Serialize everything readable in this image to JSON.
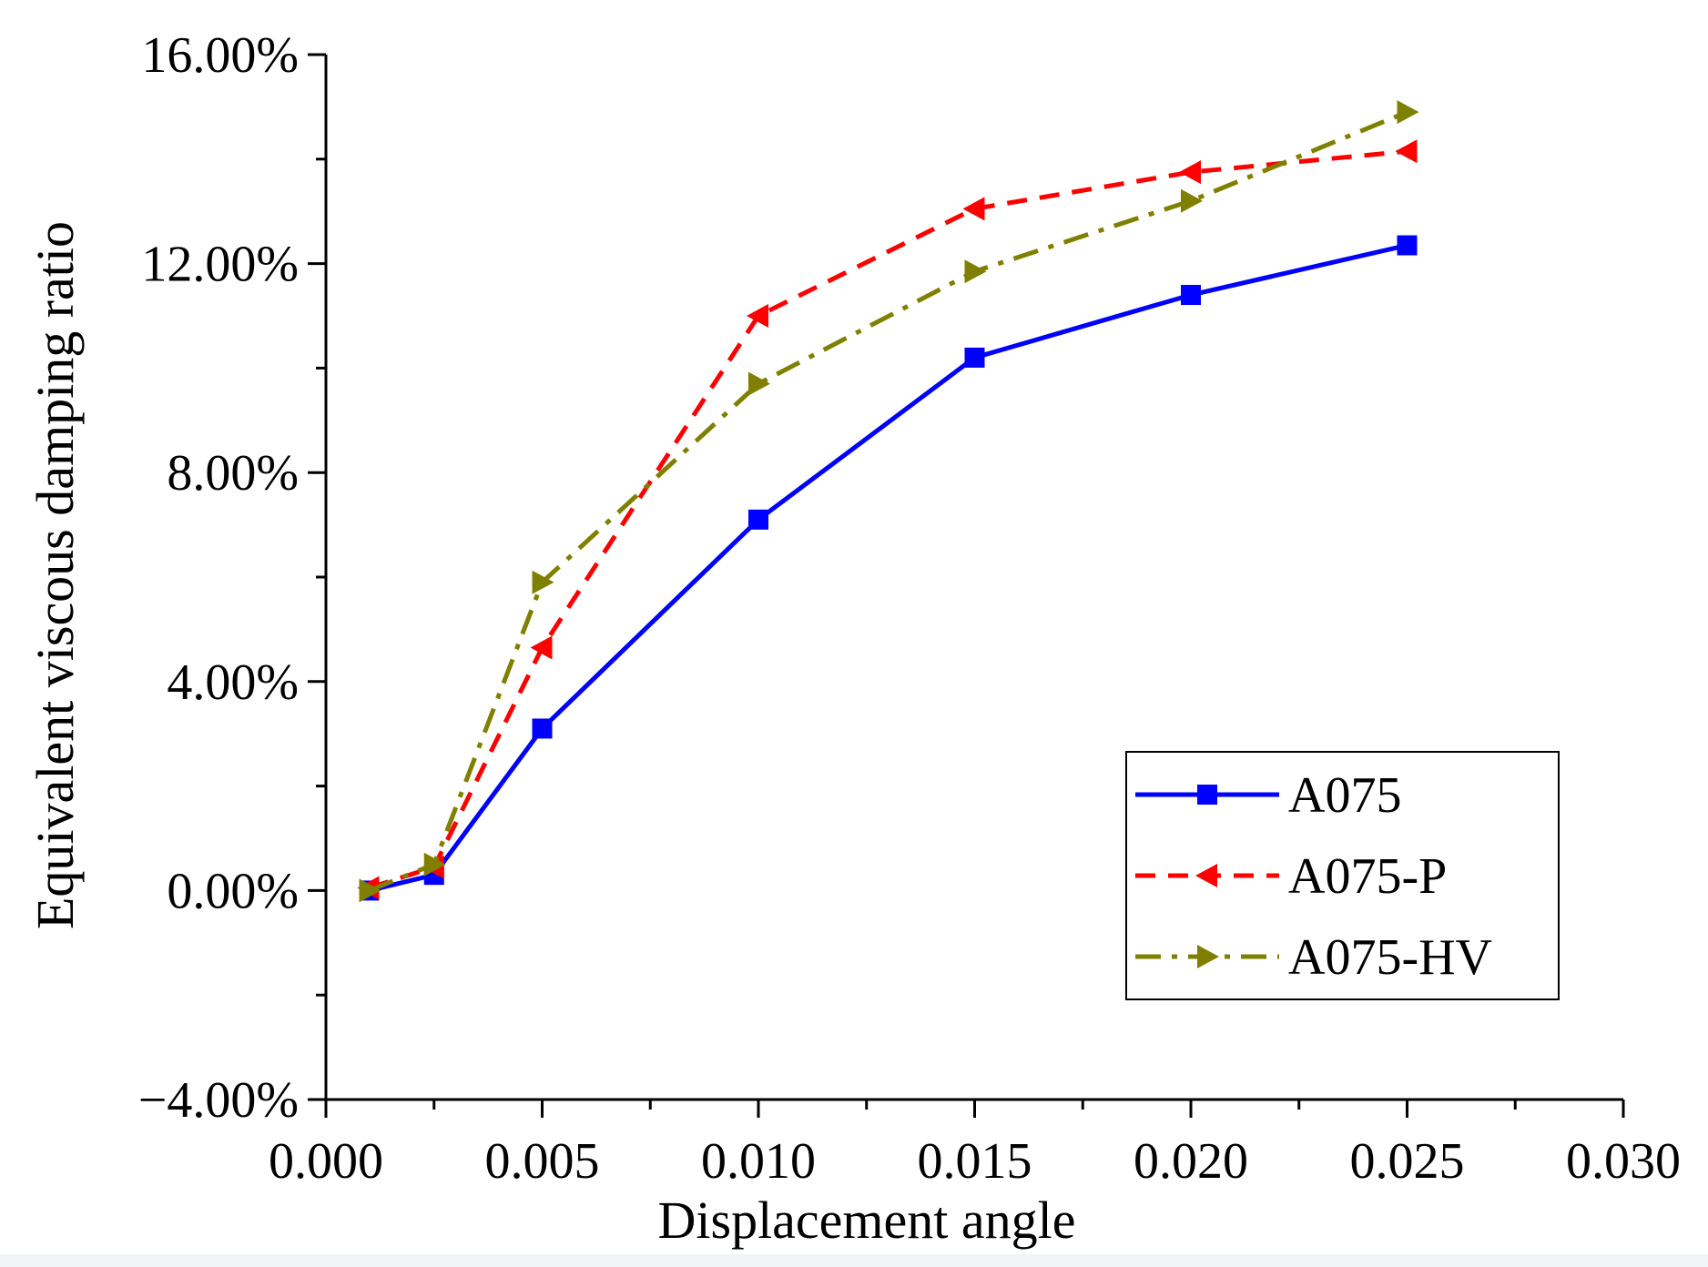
{
  "chart_data": {
    "type": "line",
    "title": "",
    "xlabel": "Displacement angle",
    "ylabel": "Equivalent viscous damping ratio",
    "xlim": [
      0.0,
      0.03
    ],
    "ylim": [
      -4.0,
      16.0
    ],
    "x_ticks": [
      0.0,
      0.005,
      0.01,
      0.015,
      0.02,
      0.025,
      0.03
    ],
    "x_tick_labels": [
      "0.000",
      "0.005",
      "0.010",
      "0.015",
      "0.020",
      "0.025",
      "0.030"
    ],
    "x_minor_step": 0.0025,
    "y_ticks": [
      -4,
      0,
      4,
      8,
      12,
      16
    ],
    "y_tick_labels": [
      "−4.00%",
      "0.00%",
      "4.00%",
      "8.00%",
      "12.00%",
      "16.00%"
    ],
    "y_minor_step": 2,
    "grid": false,
    "legend_position": "bottom-right",
    "series": [
      {
        "name": "A075",
        "color": "#0000ff",
        "line_style": "solid",
        "marker": "square",
        "x": [
          0.001,
          0.0025,
          0.005,
          0.01,
          0.015,
          0.02,
          0.025
        ],
        "y": [
          0.0,
          0.3,
          3.1,
          7.1,
          10.2,
          11.4,
          12.35
        ]
      },
      {
        "name": "A075-P",
        "color": "#ff0000",
        "line_style": "dashed",
        "marker": "triangle-left",
        "x": [
          0.001,
          0.0025,
          0.005,
          0.01,
          0.015,
          0.02,
          0.025
        ],
        "y": [
          0.05,
          0.45,
          4.65,
          11.0,
          13.05,
          13.75,
          14.15
        ]
      },
      {
        "name": "A075-HV",
        "color": "#808000",
        "line_style": "dashdot",
        "marker": "triangle-right",
        "x": [
          0.001,
          0.0025,
          0.005,
          0.01,
          0.015,
          0.02,
          0.025
        ],
        "y": [
          0.0,
          0.5,
          5.9,
          9.7,
          11.85,
          13.2,
          14.9
        ]
      }
    ]
  }
}
